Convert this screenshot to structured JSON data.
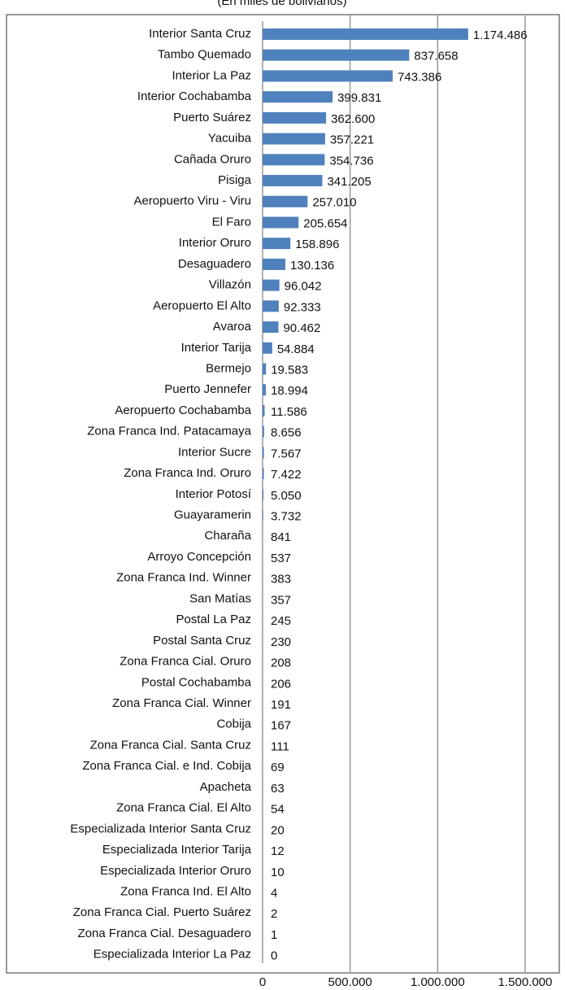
{
  "chart_data": {
    "type": "bar",
    "orientation": "horizontal",
    "subtitle": "(En miles de bolivianos)",
    "color": "#4f81bd",
    "categories": [
      "Interior Santa Cruz",
      "Tambo Quemado",
      "Interior La Paz",
      "Interior Cochabamba",
      "Puerto Suárez",
      "Yacuiba",
      "Cañada Oruro",
      "Pisiga",
      "Aeropuerto Viru - Viru",
      "El Faro",
      "Interior Oruro",
      "Desaguadero",
      "Villazón",
      "Aeropuerto El Alto",
      "Avaroa",
      "Interior Tarija",
      "Bermejo",
      "Puerto Jennefer",
      "Aeropuerto Cochabamba",
      "Zona Franca Ind. Patacamaya",
      "Interior Sucre",
      "Zona Franca Ind. Oruro",
      "Interior Potosí",
      "Guayaramerin",
      "Charaña",
      "Arroyo Concepción",
      "Zona Franca Ind. Winner",
      "San Matías",
      "Postal La Paz",
      "Postal Santa Cruz",
      "Zona Franca Cial. Oruro",
      "Postal Cochabamba",
      "Zona Franca Cial. Winner",
      "Cobija",
      "Zona Franca Cial. Santa Cruz",
      "Zona Franca Cial. e Ind. Cobija",
      "Apacheta",
      "Zona Franca Cial. El Alto",
      "Especializada Interior Santa Cruz",
      "Especializada Interior Tarija",
      "Especializada Interior Oruro",
      "Zona Franca Ind. El Alto",
      "Zona Franca Cial. Puerto Suárez",
      "Zona Franca Cial. Desaguadero",
      "Especializada Interior La Paz"
    ],
    "values": [
      1174486,
      837658,
      743386,
      399831,
      362600,
      357221,
      354736,
      341205,
      257010,
      205654,
      158896,
      130136,
      96042,
      92333,
      90462,
      54884,
      19583,
      18994,
      11586,
      8656,
      7567,
      7422,
      5050,
      3732,
      841,
      537,
      383,
      357,
      245,
      230,
      208,
      206,
      191,
      167,
      111,
      69,
      63,
      54,
      20,
      12,
      10,
      4,
      2,
      1,
      0
    ],
    "value_labels": [
      "1.174.486",
      "837.658",
      "743.386",
      "399.831",
      "362.600",
      "357.221",
      "354.736",
      "341.205",
      "257.010",
      "205.654",
      "158.896",
      "130.136",
      "96.042",
      "92.333",
      "90.462",
      "54.884",
      "19.583",
      "18.994",
      "11.586",
      "8.656",
      "7.567",
      "7.422",
      "5.050",
      "3.732",
      "841",
      "537",
      "383",
      "357",
      "245",
      "230",
      "208",
      "206",
      "191",
      "167",
      "111",
      "69",
      "63",
      "54",
      "20",
      "12",
      "10",
      "4",
      "2",
      "1",
      "0"
    ],
    "xlim": [
      0,
      1500000
    ],
    "xticks": [
      0,
      {
        "value": 500000,
        "label": "500.000"
      },
      {
        "value": 1000000,
        "label": "1.000.000"
      },
      {
        "value": 1500000,
        "label": "1.500.000"
      }
    ],
    "grid": true
  }
}
